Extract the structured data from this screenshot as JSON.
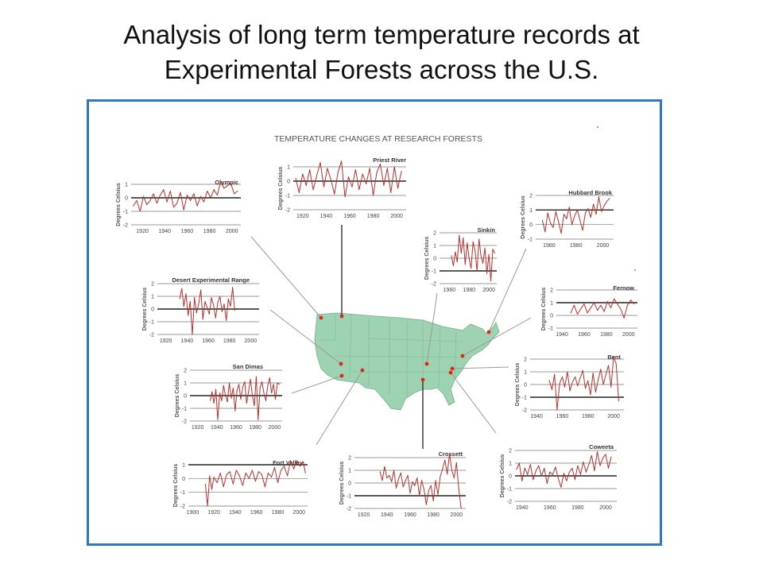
{
  "slide": {
    "title_line1": "Analysis of long term temperature records at",
    "title_line2": "Experimental Forests across the U.S."
  },
  "figure": {
    "heading": "TEMPERATURE CHANGES AT RESEARCH FORESTS",
    "ylabel": "Degrees Celsius",
    "colors": {
      "series": "#b5322a",
      "map_fill": "#9ed3b1",
      "map_line": "#7fb895",
      "frame": "#2e78bf",
      "site_dot": "#e0261b"
    }
  },
  "chart_data": [
    {
      "type": "line",
      "title": "Olympic",
      "ylabel": "Degrees Celsius",
      "ylim": [
        -2,
        1
      ],
      "yticks": [
        -2,
        -1,
        0,
        1
      ],
      "xlim": [
        1910,
        2008
      ],
      "xticks": [
        1920,
        1940,
        1960,
        1980,
        2000
      ],
      "refline": 0,
      "series": [
        {
          "x": [
            1912,
            1915,
            1918,
            1921,
            1924,
            1927,
            1930,
            1933,
            1936,
            1939,
            1942,
            1945,
            1948,
            1951,
            1954,
            1957,
            1960,
            1963,
            1966,
            1969,
            1972,
            1975,
            1978,
            1981,
            1984,
            1987,
            1990,
            1993,
            1996,
            1999,
            2002,
            2005
          ],
          "y": [
            -0.6,
            -0.2,
            -1.0,
            0.1,
            -0.5,
            -0.2,
            0.3,
            -0.4,
            0.2,
            0.6,
            -0.3,
            0.5,
            -0.7,
            -0.4,
            0.4,
            -0.9,
            0.2,
            -0.2,
            0.3,
            -0.6,
            0.1,
            -0.3,
            0.5,
            0.0,
            0.6,
            0.2,
            1.2,
            0.7,
            0.9,
            1.1,
            0.3,
            0.5
          ]
        }
      ]
    },
    {
      "type": "line",
      "title": "Priest River",
      "ylabel": "Degrees Celsius",
      "ylim": [
        -2,
        1
      ],
      "yticks": [
        -2,
        -1,
        0,
        1
      ],
      "xlim": [
        1912,
        2008
      ],
      "xticks": [
        1920,
        1940,
        1960,
        1980,
        2000
      ],
      "refline": 0,
      "series": [
        {
          "x": [
            1914,
            1917,
            1920,
            1923,
            1926,
            1929,
            1932,
            1935,
            1938,
            1941,
            1944,
            1947,
            1950,
            1953,
            1956,
            1959,
            1962,
            1965,
            1968,
            1971,
            1974,
            1977,
            1980,
            1983,
            1986,
            1989,
            1992,
            1995,
            1998,
            2001,
            2004
          ],
          "y": [
            0.2,
            -0.8,
            0.5,
            -0.3,
            0.8,
            -0.6,
            0.4,
            1.3,
            -0.4,
            0.9,
            0.1,
            -0.9,
            0.6,
            1.4,
            -1.1,
            0.3,
            -0.4,
            0.8,
            -0.6,
            0.5,
            -0.2,
            0.9,
            -1.0,
            0.6,
            1.2,
            -0.3,
            0.9,
            -0.8,
            1.0,
            -0.5,
            0.7
          ]
        }
      ]
    },
    {
      "type": "line",
      "title": "Hubbard Brook",
      "ylabel": "Degrees Celsius",
      "ylim": [
        -1,
        2
      ],
      "yticks": [
        -1,
        0,
        1,
        2
      ],
      "xlim": [
        1950,
        2008
      ],
      "xticks": [
        1960,
        1980,
        2000
      ],
      "refline": 1,
      "series": [
        {
          "x": [
            1955,
            1957,
            1959,
            1961,
            1963,
            1965,
            1967,
            1969,
            1971,
            1973,
            1975,
            1977,
            1979,
            1981,
            1983,
            1985,
            1987,
            1989,
            1991,
            1993,
            1995,
            1997,
            1999,
            2001,
            2003,
            2005
          ],
          "y": [
            0.3,
            -0.5,
            0.8,
            0.1,
            -0.2,
            0.9,
            0.2,
            -0.6,
            0.7,
            0.4,
            1.2,
            0.0,
            0.6,
            1.0,
            0.3,
            -0.4,
            0.8,
            1.1,
            0.5,
            1.4,
            0.7,
            1.9,
            0.9,
            1.3,
            1.6,
            1.8
          ]
        }
      ]
    },
    {
      "type": "line",
      "title": "Sinkin",
      "ylabel": "Degrees Celsius",
      "ylim": [
        -2,
        2
      ],
      "yticks": [
        -2,
        -1,
        0,
        1,
        2
      ],
      "xlim": [
        1950,
        2008
      ],
      "xticks": [
        1960,
        1980,
        2000
      ],
      "refline": -1,
      "series": [
        {
          "x": [
            1962,
            1964,
            1966,
            1968,
            1970,
            1972,
            1974,
            1976,
            1978,
            1980,
            1982,
            1984,
            1986,
            1988,
            1990,
            1992,
            1994,
            1996,
            1998,
            2000,
            2002,
            2004,
            2006
          ],
          "y": [
            0.2,
            -0.6,
            0.5,
            -0.3,
            1.8,
            0.4,
            1.6,
            -0.5,
            1.2,
            0.0,
            -0.8,
            1.3,
            0.6,
            -1.0,
            1.5,
            0.2,
            -0.4,
            0.8,
            -1.2,
            0.3,
            -1.8,
            0.7,
            0.4
          ]
        }
      ]
    },
    {
      "type": "line",
      "title": "Desert Experimental Range",
      "ylabel": "Degrees Celsius",
      "ylim": [
        -2,
        2
      ],
      "yticks": [
        -2,
        -1,
        0,
        1,
        2
      ],
      "xlim": [
        1912,
        2008
      ],
      "xticks": [
        1920,
        1940,
        1960,
        1980,
        2000
      ],
      "refline": 0,
      "series": [
        {
          "x": [
            1933,
            1935,
            1937,
            1939,
            1941,
            1943,
            1945,
            1947,
            1949,
            1951,
            1953,
            1955,
            1957,
            1959,
            1961,
            1963,
            1965,
            1967,
            1969,
            1971,
            1973,
            1975,
            1977,
            1979,
            1981,
            1983,
            1985
          ],
          "y": [
            0.8,
            1.6,
            0.2,
            1.2,
            -0.5,
            0.6,
            -2.0,
            0.9,
            -0.3,
            0.4,
            1.5,
            -0.8,
            0.6,
            0.1,
            -0.4,
            0.9,
            0.3,
            -0.7,
            0.5,
            1.0,
            -0.2,
            0.4,
            -0.9,
            0.8,
            0.2,
            1.7,
            -0.1
          ]
        }
      ]
    },
    {
      "type": "line",
      "title": "Fernow",
      "ylabel": "Degrees Celsius",
      "ylim": [
        -1,
        2
      ],
      "yticks": [
        -1,
        0,
        1,
        2
      ],
      "xlim": [
        1935,
        2008
      ],
      "xticks": [
        1940,
        1960,
        1980,
        2000
      ],
      "refline": 1,
      "series": [
        {
          "x": [
            1948,
            1951,
            1954,
            1957,
            1960,
            1963,
            1966,
            1969,
            1972,
            1975,
            1978,
            1981,
            1984,
            1987,
            1990,
            1993,
            1996,
            1999,
            2002,
            2005
          ],
          "y": [
            0.2,
            0.8,
            0.1,
            0.5,
            0.9,
            0.2,
            0.6,
            1.0,
            0.4,
            0.8,
            0.3,
            1.1,
            0.6,
            1.3,
            0.9,
            0.5,
            -0.2,
            0.8,
            1.2,
            0.9
          ]
        }
      ]
    },
    {
      "type": "line",
      "title": "San Dimas",
      "ylabel": "Degrees Celsius",
      "ylim": [
        -2,
        2
      ],
      "yticks": [
        -2,
        -1,
        0,
        1,
        2
      ],
      "xlim": [
        1912,
        2008
      ],
      "xticks": [
        1920,
        1940,
        1960,
        1980,
        2000
      ],
      "refline": 0,
      "series": [
        {
          "x": [
            1933,
            1935,
            1937,
            1939,
            1941,
            1943,
            1945,
            1947,
            1949,
            1951,
            1953,
            1955,
            1957,
            1959,
            1961,
            1963,
            1965,
            1967,
            1969,
            1971,
            1973,
            1975,
            1977,
            1979,
            1981,
            1983,
            1985,
            1987,
            1989,
            1991,
            1993,
            1995,
            1997,
            1999,
            2001,
            2003,
            2005
          ],
          "y": [
            -0.4,
            0.3,
            -0.6,
            0.5,
            -1.9,
            0.2,
            -0.4,
            0.8,
            0.0,
            -0.5,
            1.0,
            -0.2,
            0.6,
            -1.2,
            0.4,
            0.9,
            -0.3,
            0.7,
            1.1,
            -0.6,
            0.3,
            1.3,
            0.0,
            -0.8,
            1.5,
            -1.9,
            0.6,
            1.1,
            0.2,
            -0.4,
            0.8,
            1.4,
            0.2,
            0.9,
            -0.3,
            1.0,
            0.9
          ]
        }
      ]
    },
    {
      "type": "line",
      "title": "Bent",
      "ylabel": "Degrees Celsius",
      "ylim": [
        -2,
        2
      ],
      "yticks": [
        -2,
        -1,
        0,
        1,
        2
      ],
      "xlim": [
        1935,
        2008
      ],
      "xticks": [
        1940,
        1960,
        1980,
        2000
      ],
      "refline": -1,
      "series": [
        {
          "x": [
            1950,
            1952,
            1954,
            1956,
            1958,
            1960,
            1962,
            1964,
            1966,
            1968,
            1970,
            1972,
            1974,
            1976,
            1978,
            1980,
            1982,
            1984,
            1986,
            1988,
            1990,
            1992,
            1994,
            1996,
            1998,
            2000,
            2002,
            2004
          ],
          "y": [
            0.3,
            -0.4,
            0.8,
            -2.0,
            0.1,
            0.6,
            -0.2,
            1.0,
            -0.5,
            0.2,
            0.6,
            -0.1,
            0.5,
            1.1,
            -0.3,
            0.3,
            -0.8,
            0.9,
            -0.6,
            0.4,
            1.2,
            0.0,
            0.8,
            1.5,
            -0.2,
            2.2,
            1.6,
            -1.3
          ]
        }
      ]
    },
    {
      "type": "line",
      "title": "Fort Valley",
      "ylabel": "Degrees Celsius",
      "ylim": [
        -2,
        1
      ],
      "yticks": [
        -2,
        -1,
        0,
        1
      ],
      "xlim": [
        1896,
        2008
      ],
      "xticks": [
        1900,
        1920,
        1940,
        1960,
        1980,
        2000
      ],
      "refline": 1,
      "series": [
        {
          "x": [
            1912,
            1914,
            1916,
            1918,
            1920,
            1923,
            1926,
            1929,
            1932,
            1935,
            1938,
            1941,
            1944,
            1947,
            1950,
            1953,
            1956,
            1959,
            1962,
            1965,
            1968,
            1971,
            1974,
            1977,
            1980,
            1983,
            1986,
            1989,
            1992,
            1995,
            1998,
            2001,
            2004,
            2006
          ],
          "y": [
            -0.4,
            -2.0,
            0.2,
            -0.8,
            0.1,
            -0.3,
            0.4,
            -0.6,
            0.3,
            0.5,
            -0.4,
            0.6,
            0.2,
            -0.5,
            0.4,
            0.0,
            0.6,
            -0.2,
            0.5,
            0.3,
            -0.6,
            0.4,
            0.1,
            0.8,
            -0.3,
            0.6,
            0.9,
            0.2,
            1.3,
            0.7,
            1.3,
            0.9,
            1.2,
            0.4
          ]
        }
      ]
    },
    {
      "type": "line",
      "title": "Crossett",
      "ylabel": "Degrees Celsius",
      "ylim": [
        -2,
        2
      ],
      "yticks": [
        -2,
        -1,
        0,
        1,
        2
      ],
      "xlim": [
        1912,
        2008
      ],
      "xticks": [
        1920,
        1940,
        1960,
        1980,
        2000
      ],
      "refline": -1,
      "series": [
        {
          "x": [
            1934,
            1936,
            1938,
            1940,
            1942,
            1944,
            1946,
            1948,
            1950,
            1952,
            1954,
            1956,
            1958,
            1960,
            1962,
            1964,
            1966,
            1968,
            1970,
            1972,
            1974,
            1976,
            1978,
            1980,
            1982,
            1984,
            1986,
            1988,
            1990,
            1992,
            1994,
            1996,
            1998,
            2000,
            2002,
            2004
          ],
          "y": [
            0.9,
            0.2,
            1.3,
            0.4,
            0.6,
            0.1,
            1.0,
            -0.4,
            0.3,
            0.8,
            -0.3,
            0.2,
            0.6,
            -0.8,
            0.1,
            -0.2,
            0.4,
            -1.0,
            0.2,
            -0.5,
            -1.7,
            -0.6,
            -0.2,
            -1.4,
            0.2,
            -0.9,
            0.5,
            1.1,
            1.8,
            0.7,
            2.3,
            1.0,
            0.4,
            1.6,
            -0.5,
            -2.0
          ]
        }
      ]
    },
    {
      "type": "line",
      "title": "Coweeta",
      "ylabel": "Degrees Celsius",
      "ylim": [
        -2,
        2
      ],
      "yticks": [
        -2,
        -1,
        0,
        1,
        2
      ],
      "xlim": [
        1935,
        2008
      ],
      "xticks": [
        1940,
        1960,
        1980,
        2000
      ],
      "refline": 0,
      "series": [
        {
          "x": [
            1936,
            1938,
            1940,
            1942,
            1944,
            1946,
            1948,
            1950,
            1952,
            1954,
            1956,
            1958,
            1960,
            1962,
            1964,
            1966,
            1968,
            1970,
            1972,
            1974,
            1976,
            1978,
            1980,
            1982,
            1984,
            1986,
            1988,
            1990,
            1992,
            1994,
            1996,
            1998,
            2000,
            2002,
            2004
          ],
          "y": [
            0.5,
            1.0,
            -0.4,
            0.6,
            0.1,
            0.9,
            -0.3,
            0.4,
            0.8,
            0.0,
            0.6,
            -0.6,
            0.3,
            0.1,
            0.7,
            -0.2,
            -0.9,
            0.2,
            -0.4,
            0.3,
            0.6,
            -0.3,
            0.8,
            0.1,
            1.1,
            0.3,
            0.9,
            1.6,
            0.4,
            1.9,
            0.8,
            1.4,
            1.7,
            0.6,
            1.5
          ]
        }
      ]
    }
  ]
}
